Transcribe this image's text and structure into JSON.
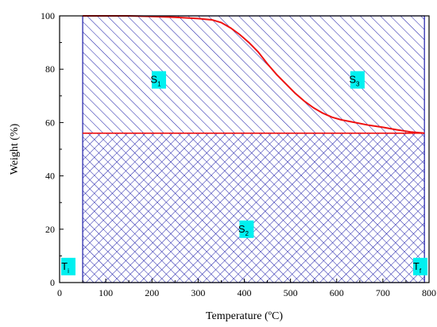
{
  "chart_data": {
    "type": "area",
    "xlabel": "Temperature (ºC)",
    "ylabel": "Weight (%)",
    "xlim": [
      0,
      800
    ],
    "ylim": [
      0,
      100
    ],
    "xticks": [
      0,
      100,
      200,
      300,
      400,
      500,
      600,
      700,
      800
    ],
    "yticks": [
      0,
      20,
      40,
      60,
      80,
      100
    ],
    "grid": false,
    "series": [
      {
        "x": [
          50,
          100,
          150,
          200,
          250,
          300,
          330,
          350,
          370,
          390,
          410,
          430,
          450,
          470,
          490,
          510,
          530,
          550,
          570,
          590,
          610,
          640,
          670,
          700,
          730,
          760,
          790
        ],
        "values": [
          100,
          100,
          100,
          99.8,
          99.5,
          99,
          98.5,
          97.5,
          95.5,
          93,
          90,
          86.5,
          82,
          78,
          74.5,
          71,
          68,
          65.5,
          63.5,
          62,
          61,
          60,
          59,
          58.2,
          57.3,
          56.5,
          56
        ]
      }
    ],
    "reference_lines": {
      "y_residual": 56,
      "x_initial": 50,
      "x_final": 790,
      "y_top": 100
    },
    "region_labels": {
      "s1": {
        "main": "S",
        "sub": "1"
      },
      "s2": {
        "main": "S",
        "sub": "2"
      },
      "s3": {
        "main": "S",
        "sub": "3"
      },
      "ti": {
        "main": "T",
        "sub": "i"
      },
      "tf": {
        "main": "T",
        "sub": "f"
      }
    },
    "colors": {
      "hatch": "#1a1aa8",
      "curve": "#ee1111",
      "label_bg": "#00f0f0",
      "axis": "#000000"
    }
  }
}
